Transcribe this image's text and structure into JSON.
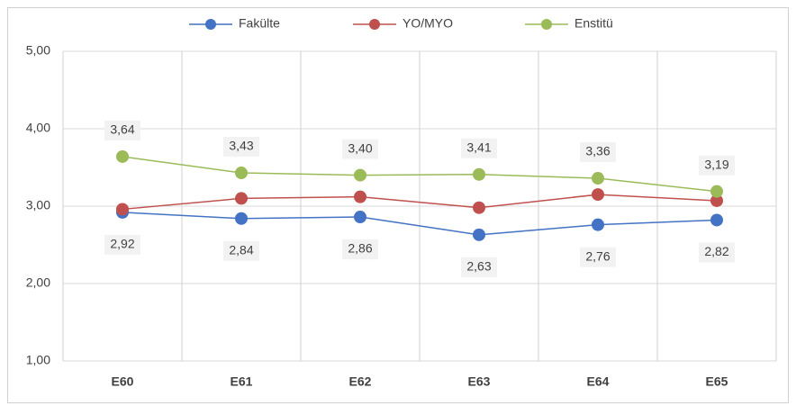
{
  "chart_data": {
    "type": "line",
    "categories": [
      "E60",
      "E61",
      "E62",
      "E63",
      "E64",
      "E65"
    ],
    "series": [
      {
        "name": "Fakülte",
        "color": "#4472c4",
        "values": [
          2.92,
          2.84,
          2.86,
          2.63,
          2.76,
          2.82
        ],
        "value_labels": [
          "2,92",
          "2,84",
          "2,86",
          "2,63",
          "2,76",
          "2,82"
        ]
      },
      {
        "name": "YO/MYO",
        "color": "#c0504d",
        "values": [
          2.96,
          3.1,
          3.12,
          2.98,
          3.15,
          3.07
        ]
      },
      {
        "name": "Enstitü",
        "color": "#9bbb59",
        "values": [
          3.64,
          3.43,
          3.4,
          3.41,
          3.36,
          3.19
        ],
        "value_labels": [
          "3,64",
          "3,43",
          "3,40",
          "3,41",
          "3,36",
          "3,19"
        ]
      }
    ],
    "ylim": [
      1,
      5
    ],
    "yticks": [
      {
        "value": 1,
        "label": "1,00"
      },
      {
        "value": 2,
        "label": "2,00"
      },
      {
        "value": 3,
        "label": "3,00"
      },
      {
        "value": 4,
        "label": "4,00"
      },
      {
        "value": 5,
        "label": "5,00"
      }
    ],
    "grid": true,
    "legend": "top"
  }
}
